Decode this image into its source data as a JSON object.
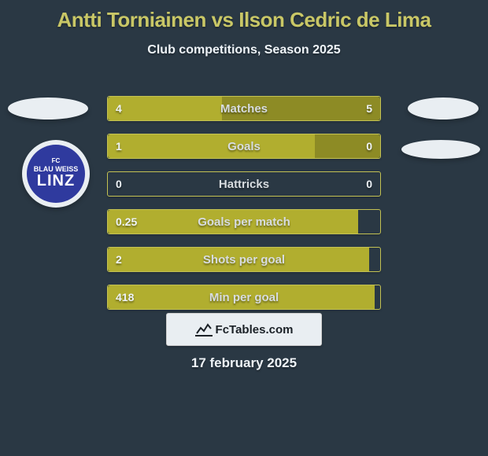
{
  "title": "Antti Torniainen vs Ilson Cedric de Lima",
  "subtitle": "Club competitions, Season 2025",
  "date": "17 february 2025",
  "brand": "FcTables.com",
  "badge": {
    "top": "FC",
    "mid": "BLAU WEISS",
    "big": "LINZ"
  },
  "colors": {
    "accent": "#b1ae2f",
    "accent_dim": "#8d8b25",
    "bg": "#2a3844",
    "title": "#c9c766",
    "text": "#eef3f7",
    "label": "#d7dce0"
  },
  "rows": [
    {
      "label": "Matches",
      "left": "4",
      "right": "5",
      "lw": 42,
      "rw": 58,
      "lc": "#b1ae2f",
      "rc": "#8d8b25"
    },
    {
      "label": "Goals",
      "left": "1",
      "right": "0",
      "lw": 76,
      "rw": 24,
      "lc": "#b1ae2f",
      "rc": "#8d8b25"
    },
    {
      "label": "Hattricks",
      "left": "0",
      "right": "0",
      "lw": 0,
      "rw": 0,
      "lc": "#b1ae2f",
      "rc": "#8d8b25"
    },
    {
      "label": "Goals per match",
      "left": "0.25",
      "right": "",
      "lw": 92,
      "rw": 0,
      "lc": "#b1ae2f",
      "rc": "#8d8b25"
    },
    {
      "label": "Shots per goal",
      "left": "2",
      "right": "",
      "lw": 96,
      "rw": 0,
      "lc": "#b1ae2f",
      "rc": "#8d8b25"
    },
    {
      "label": "Min per goal",
      "left": "418",
      "right": "",
      "lw": 98,
      "rw": 0,
      "lc": "#b1ae2f",
      "rc": "#8d8b25"
    }
  ]
}
